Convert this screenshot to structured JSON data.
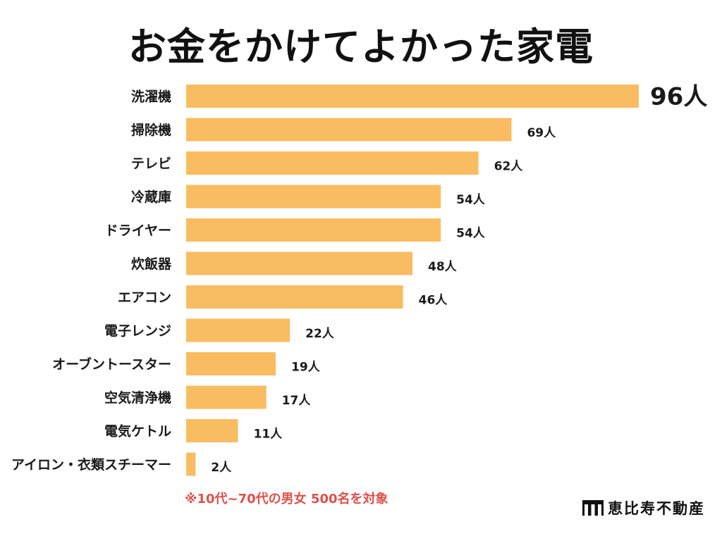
{
  "title": "お金をかけてよかった家電",
  "footnote": "※10代~70代の男女 500名を対象",
  "logo": {
    "text": "恵比寿不動産",
    "icon": "building-columns-icon"
  },
  "colors": {
    "bar": "#f9bc60",
    "footnote": "#e0504a",
    "text": "#1a1a1a"
  },
  "chart_data": {
    "type": "bar",
    "orientation": "horizontal",
    "title": "お金をかけてよかった家電",
    "xlabel": "",
    "ylabel": "",
    "unit": "人",
    "categories": [
      "洗濯機",
      "掃除機",
      "テレビ",
      "冷蔵庫",
      "ドライヤー",
      "炊飯器",
      "エアコン",
      "電子レンジ",
      "オーブントースター",
      "空気清浄機",
      "電気ケトル",
      "アイロン・衣類スチーマー"
    ],
    "values": [
      96,
      69,
      62,
      54,
      54,
      48,
      46,
      22,
      19,
      17,
      11,
      2
    ],
    "value_labels": [
      "96人",
      "69人",
      "62人",
      "54人",
      "54人",
      "48人",
      "46人",
      "22人",
      "19人",
      "17人",
      "11人",
      "2人"
    ],
    "xlim": [
      0,
      96
    ],
    "grid": false,
    "legend": "none"
  }
}
